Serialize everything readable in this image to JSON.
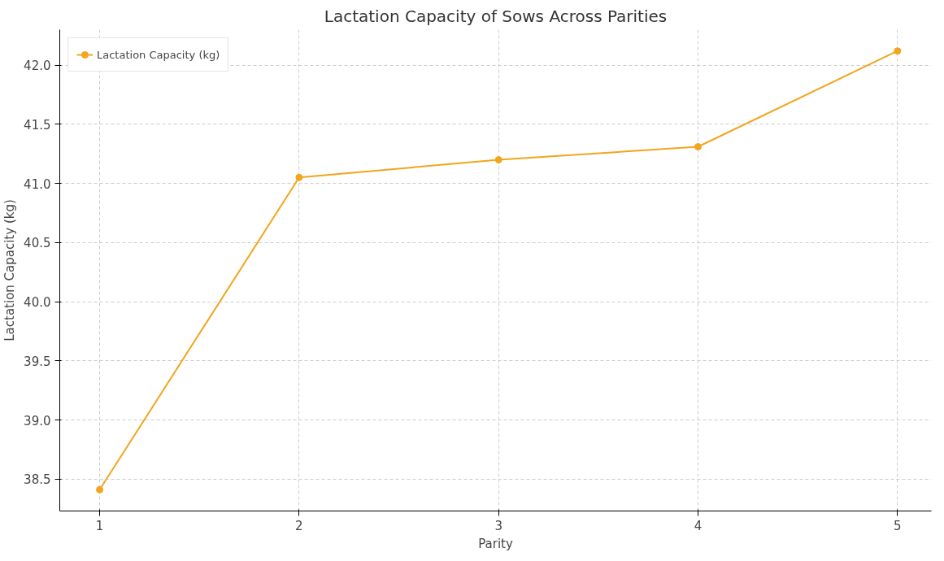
{
  "chart_data": {
    "type": "line",
    "title": "Lactation Capacity of Sows Across Parities",
    "xlabel": "Parity",
    "ylabel": "Lactation Capacity (kg)",
    "x": [
      1,
      2,
      3,
      4,
      5
    ],
    "series": [
      {
        "name": "Lactation Capacity (kg)",
        "color": "#f2a51d",
        "values": [
          38.41,
          41.05,
          41.2,
          41.31,
          42.12
        ]
      }
    ],
    "xlim": [
      0.8,
      5.17
    ],
    "ylim": [
      38.23,
      42.3
    ],
    "xticks": [
      1,
      2,
      3,
      4,
      5
    ],
    "yticks": [
      {
        "value": 38.5,
        "label": "38.5"
      },
      {
        "value": 39,
        "label": "39.0"
      },
      {
        "value": 39.5,
        "label": "39.5"
      },
      {
        "value": 40,
        "label": "40.0"
      },
      {
        "value": 40.5,
        "label": "40.5"
      },
      {
        "value": 41,
        "label": "41.0"
      },
      {
        "value": 41.5,
        "label": "41.5"
      },
      {
        "value": 42,
        "label": "42.0"
      }
    ],
    "grid": true,
    "legend": "top left",
    "marker": "circle",
    "line_style": "solid"
  }
}
